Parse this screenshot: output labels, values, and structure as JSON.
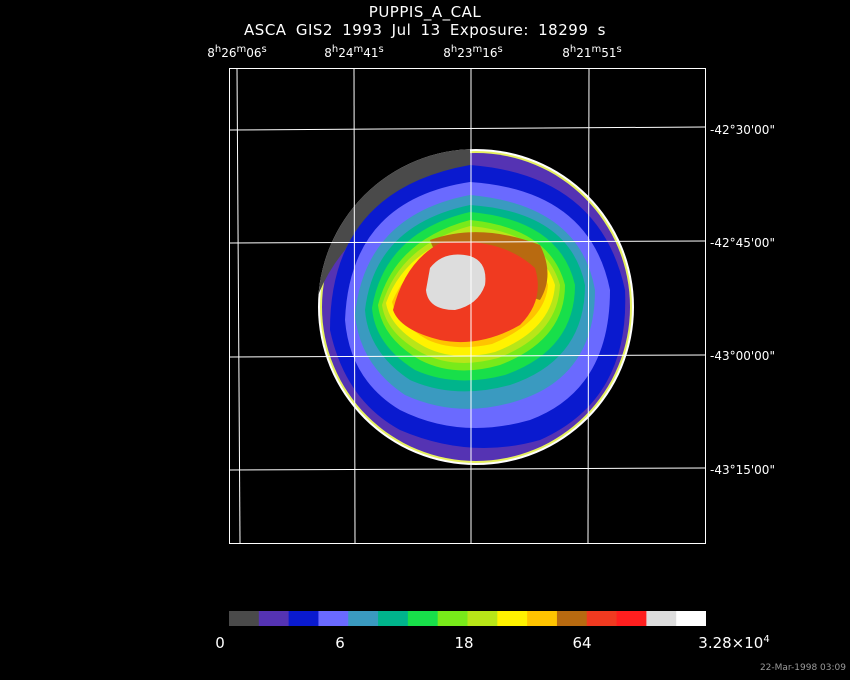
{
  "header": {
    "title": "PUPPIS_A_CAL",
    "subtitle": "ASCA GIS2    1993 Jul 13     Exposure: 18299 s"
  },
  "axes": {
    "ra_labels": [
      {
        "h": "8",
        "m": "26",
        "s": "06"
      },
      {
        "h": "8",
        "m": "24",
        "s": "41"
      },
      {
        "h": "8",
        "m": "23",
        "s": "16"
      },
      {
        "h": "8",
        "m": "21",
        "s": "51"
      }
    ],
    "dec_labels": [
      "-42°30'00\"",
      "-42°45'00\"",
      "-43°00'00\"",
      "-43°15'00\""
    ]
  },
  "colorbar": {
    "colors": [
      "#4a4a4a",
      "#5533b3",
      "#0a1acf",
      "#6a6aff",
      "#3a9ac0",
      "#00b48c",
      "#18df4a",
      "#78ea1a",
      "#b8e618",
      "#fff200",
      "#ffc400",
      "#b86a10",
      "#f03a20",
      "#ff1f1f",
      "#dddddd",
      "#ffffff"
    ],
    "labels": [
      "0",
      "6",
      "18",
      "64"
    ],
    "max_label": "3.28×10",
    "max_exp": "4"
  },
  "footer": {
    "timestamp": "22-Mar-1998 03:09"
  }
}
